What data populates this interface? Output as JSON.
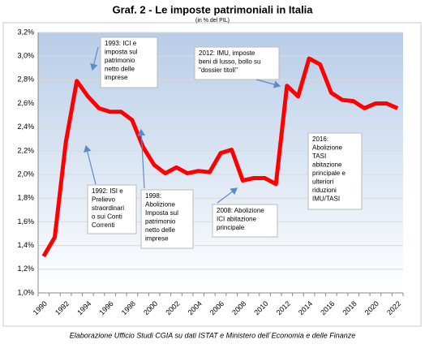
{
  "chart_data": {
    "type": "line",
    "title": "Graf. 2 - Le imposte patrimoniali in Italia",
    "subtitle": "(in % del PIL)",
    "footer": "Elaborazione Ufficio Studi CGIA su dati ISTAT e Ministero dell´Economia e delle Finanze",
    "categories": [
      "1990",
      null,
      "1992",
      null,
      "1994",
      null,
      "1996",
      null,
      "1998",
      null,
      "2000",
      null,
      "2002",
      null,
      "2004",
      null,
      "2006",
      null,
      "2008",
      null,
      "2010",
      null,
      "2012",
      null,
      "2014",
      null,
      "2016",
      null,
      "2018",
      null,
      "2020",
      null,
      "2022"
    ],
    "values": [
      1.31,
      1.47,
      2.27,
      2.79,
      2.66,
      2.56,
      2.53,
      2.53,
      2.46,
      2.23,
      2.08,
      2.01,
      2.06,
      2.01,
      2.03,
      2.02,
      2.18,
      2.21,
      1.95,
      1.97,
      1.97,
      1.92,
      2.75,
      2.66,
      2.98,
      2.93,
      2.69,
      2.63,
      2.62,
      2.56,
      2.6,
      2.6,
      2.56
    ],
    "color": "#ff0000",
    "ylim": [
      1.0,
      3.2
    ],
    "yticks": [
      {
        "value": 1.0,
        "label": "1,0%"
      },
      {
        "value": 1.2,
        "label": "1,2%"
      },
      {
        "value": 1.4,
        "label": "1,4%"
      },
      {
        "value": 1.6,
        "label": "1,6%"
      },
      {
        "value": 1.8,
        "label": "1,8%"
      },
      {
        "value": 2.0,
        "label": "2,0%"
      },
      {
        "value": 2.2,
        "label": "2,2%"
      },
      {
        "value": 2.4,
        "label": "2,4%"
      },
      {
        "value": 2.6,
        "label": "2,6%"
      },
      {
        "value": 2.8,
        "label": "2,8%"
      },
      {
        "value": 3.0,
        "label": "3,0%"
      },
      {
        "value": 3.2,
        "label": "3,2%"
      }
    ],
    "grid": true,
    "annotations": [
      [
        "1993: ICI e",
        "imposta sul",
        "patrimonio",
        "netto delle",
        "imprese"
      ],
      [
        "1992: ISI e",
        "Prelievo",
        "straordinari",
        "o sui Conti",
        "Correnti"
      ],
      [
        "1998:",
        "Abolizione",
        "Imposta sul",
        "patrimonio",
        "netto delle",
        "imprese"
      ],
      [
        "2008: Abolizione",
        "ICI abitazione",
        "principale"
      ],
      [
        "2012: IMU, imposte",
        "beni di lusso,  bollo su",
        "\"dossier  titoli\""
      ],
      [
        "2016:",
        "Abolizione",
        "TASI",
        "abitazione",
        "principale e",
        "ulteriori",
        "riduzioni",
        "IMU/TASI"
      ]
    ]
  }
}
